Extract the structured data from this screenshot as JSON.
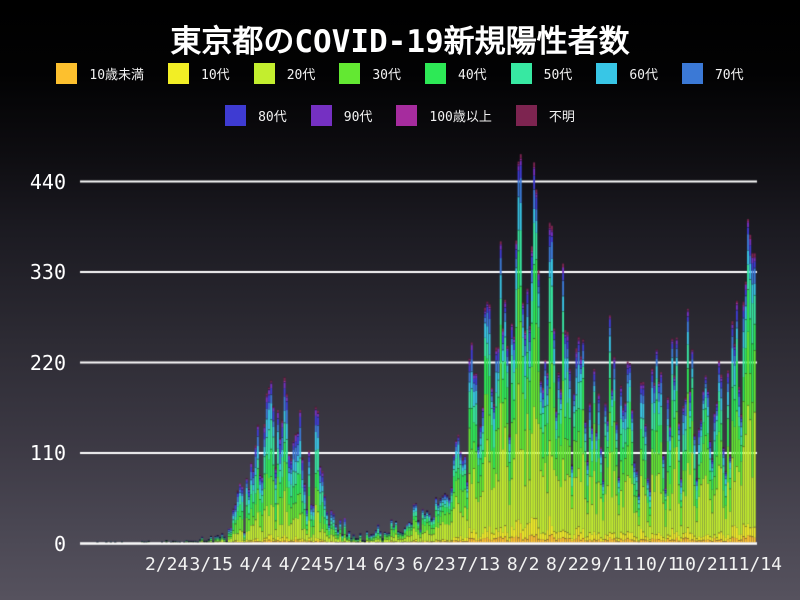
{
  "title": "東京都のCOVID-19新規陽性者数",
  "chart_data": {
    "type": "bar",
    "stacked": true,
    "title": "東京都のCOVID-19新規陽性者数",
    "grid": "horizontal-white-lines",
    "legend_position": "top",
    "ylim": [
      0,
      480
    ],
    "y_ticks": [
      0,
      110,
      220,
      330,
      440
    ],
    "x_start_date": "1/24",
    "x_ticks": [
      {
        "label": "2/24",
        "day": 31
      },
      {
        "label": "3/15",
        "day": 51
      },
      {
        "label": "4/4",
        "day": 71
      },
      {
        "label": "4/24",
        "day": 91
      },
      {
        "label": "5/14",
        "day": 111
      },
      {
        "label": "6/3",
        "day": 131
      },
      {
        "label": "6/23",
        "day": 151
      },
      {
        "label": "7/13",
        "day": 171
      },
      {
        "label": "8/2",
        "day": 191
      },
      {
        "label": "8/22",
        "day": 211
      },
      {
        "label": "9/11",
        "day": 231
      },
      {
        "label": "10/1",
        "day": 251
      },
      {
        "label": "10/21",
        "day": 271
      },
      {
        "label": "11/14",
        "day": 295
      }
    ],
    "groups": [
      {
        "label": "10歳未満",
        "color": "#fdc02e"
      },
      {
        "label": "10代",
        "color": "#f2ee25"
      },
      {
        "label": "20代",
        "color": "#c3ee2e"
      },
      {
        "label": "30代",
        "color": "#63e832"
      },
      {
        "label": "40代",
        "color": "#2de956"
      },
      {
        "label": "50代",
        "color": "#37e8a2"
      },
      {
        "label": "60代",
        "color": "#38c6e6"
      },
      {
        "label": "70代",
        "color": "#3b79d6"
      },
      {
        "label": "80代",
        "color": "#3e3bd2"
      },
      {
        "label": "90代",
        "color": "#7530c2"
      },
      {
        "label": "100歳以上",
        "color": "#a62c9e"
      },
      {
        "label": "不明",
        "color": "#7d2450"
      }
    ],
    "share_split_day": 129,
    "age_share_early": [
      0.015,
      0.025,
      0.17,
      0.19,
      0.16,
      0.14,
      0.1,
      0.08,
      0.065,
      0.035,
      0.005,
      0.015
    ],
    "age_share_late": [
      0.02,
      0.04,
      0.31,
      0.22,
      0.14,
      0.1,
      0.065,
      0.045,
      0.03,
      0.016,
      0.004,
      0.01
    ],
    "daily_totals": [
      1,
      0,
      0,
      0,
      1,
      0,
      1,
      0,
      1,
      0,
      0,
      1,
      0,
      0,
      0,
      0,
      0,
      0,
      0,
      0,
      2,
      1,
      1,
      2,
      0,
      0,
      0,
      0,
      0,
      1,
      0,
      3,
      0,
      1,
      2,
      2,
      1,
      1,
      0,
      1,
      3,
      2,
      2,
      2,
      2,
      1,
      4,
      7,
      2,
      2,
      4,
      8,
      2,
      8,
      9,
      7,
      11,
      7,
      2,
      17,
      18,
      41,
      47,
      63,
      72,
      68,
      13,
      78,
      66,
      97,
      89,
      118,
      143,
      83,
      80,
      144,
      181,
      189,
      197,
      166,
      91,
      161,
      127,
      149,
      201,
      181,
      107,
      102,
      123,
      132,
      134,
      161,
      103,
      72,
      41,
      112,
      47,
      46,
      165,
      160,
      93,
      87,
      58,
      38,
      23,
      39,
      36,
      22,
      15,
      28,
      10,
      30,
      9,
      14,
      5,
      10,
      5,
      5,
      11,
      3,
      2,
      14,
      8,
      10,
      11,
      15,
      22,
      14,
      5,
      13,
      12,
      12,
      28,
      20,
      26,
      14,
      13,
      12,
      18,
      22,
      25,
      24,
      47,
      48,
      27,
      16,
      41,
      35,
      39,
      35,
      29,
      31,
      55,
      48,
      54,
      57,
      60,
      58,
      54,
      67,
      107,
      124,
      131,
      111,
      102,
      106,
      75,
      224,
      243,
      206,
      206,
      119,
      143,
      165,
      286,
      293,
      290,
      188,
      168,
      237,
      238,
      366,
      260,
      295,
      239,
      131,
      266,
      250,
      367,
      463,
      472,
      292,
      258,
      309,
      263,
      360,
      462,
      429,
      331,
      197,
      188,
      222,
      206,
      389,
      385,
      260,
      161,
      207,
      186,
      339,
      258,
      256,
      212,
      95,
      182,
      236,
      250,
      226,
      247,
      148,
      100,
      170,
      141,
      211,
      136,
      181,
      116,
      77,
      170,
      149,
      276,
      187,
      226,
      146,
      80,
      191,
      163,
      171,
      220,
      218,
      162,
      98,
      88,
      59,
      195,
      195,
      144,
      78,
      65,
      212,
      194,
      235,
      196,
      207,
      107,
      66,
      177,
      142,
      248,
      203,
      249,
      146,
      78,
      166,
      177,
      284,
      184,
      235,
      132,
      78,
      139,
      150,
      185,
      203,
      186,
      124,
      102,
      158,
      171,
      221,
      204,
      116,
      87,
      209,
      106,
      269,
      242,
      294,
      189,
      156,
      293,
      317,
      393,
      374,
      352,
      352
    ]
  },
  "colors": {
    "text": "#ffffff",
    "grid": "#ffffff",
    "background_top": "#000000",
    "background_bottom": "#56525e"
  }
}
